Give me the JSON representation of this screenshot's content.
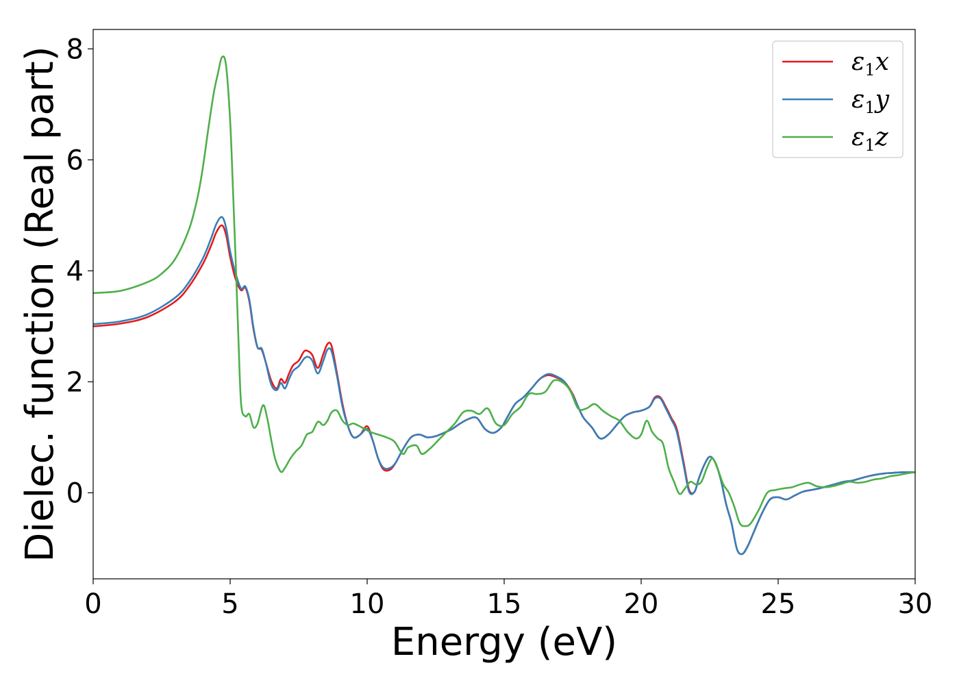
{
  "chart_data": {
    "type": "line",
    "xlabel": "Energy (eV)",
    "ylabel": "Dielec. function (Real part)",
    "xlim": [
      0,
      30
    ],
    "ylim": [
      -1.55,
      8.35
    ],
    "xticks": [
      0,
      5,
      10,
      15,
      20,
      25,
      30
    ],
    "xtick_labels": [
      "0",
      "5",
      "10",
      "15",
      "20",
      "25",
      "30"
    ],
    "yticks": [
      0,
      2,
      4,
      6,
      8
    ],
    "ytick_labels": [
      "0",
      "2",
      "4",
      "6",
      "8"
    ],
    "grid": false,
    "legend": {
      "placement": "top-right",
      "entries": [
        {
          "symbol": "ε",
          "sub": "1",
          "var": "x"
        },
        {
          "symbol": "ε",
          "sub": "1",
          "var": "y"
        },
        {
          "symbol": "ε",
          "sub": "1",
          "var": "z"
        }
      ]
    },
    "series": [
      {
        "color": "#e41a1c",
        "x": [
          0,
          1,
          2,
          3,
          3.5,
          4,
          4.3,
          4.5,
          4.7,
          4.85,
          5.0,
          5.2,
          5.4,
          5.55,
          5.7,
          5.85,
          6.0,
          6.15,
          6.3,
          6.5,
          6.7,
          6.85,
          7.0,
          7.15,
          7.3,
          7.5,
          7.7,
          7.85,
          8.0,
          8.2,
          8.4,
          8.55,
          8.7,
          8.9,
          9.1,
          9.3,
          9.5,
          9.75,
          10.0,
          10.2,
          10.4,
          10.6,
          10.85,
          11.05,
          11.3,
          11.6,
          11.9,
          12.2,
          12.5,
          12.8,
          13.1,
          13.4,
          13.7,
          14.0,
          14.3,
          14.6,
          14.9,
          15.1,
          15.4,
          15.7,
          16.0,
          16.3,
          16.6,
          16.9,
          17.2,
          17.5,
          17.7,
          17.9,
          18.2,
          18.5,
          18.8,
          19.1,
          19.4,
          19.7,
          20.0,
          20.3,
          20.5,
          20.7,
          20.9,
          21.1,
          21.3,
          21.55,
          21.75,
          21.95,
          22.1,
          22.3,
          22.5,
          22.7,
          22.9,
          23.1,
          23.3,
          23.5,
          23.7,
          23.9,
          24.1,
          24.4,
          24.7,
          25.0,
          25.3,
          25.6,
          25.9,
          26.2,
          26.5,
          26.8,
          27.1,
          27.4,
          27.7,
          28.0,
          28.3,
          28.6,
          28.9,
          29.2,
          29.5,
          29.8,
          30
        ],
        "y": [
          3.0,
          3.05,
          3.17,
          3.45,
          3.72,
          4.12,
          4.45,
          4.7,
          4.82,
          4.65,
          4.25,
          3.85,
          3.65,
          3.7,
          3.45,
          2.95,
          2.62,
          2.58,
          2.35,
          2.02,
          1.88,
          2.05,
          1.98,
          2.15,
          2.3,
          2.38,
          2.55,
          2.55,
          2.48,
          2.25,
          2.5,
          2.68,
          2.65,
          2.15,
          1.6,
          1.2,
          1.0,
          1.05,
          1.2,
          0.95,
          0.62,
          0.42,
          0.42,
          0.55,
          0.78,
          1.0,
          1.05,
          1.0,
          1.02,
          1.08,
          1.15,
          1.25,
          1.33,
          1.35,
          1.15,
          1.08,
          1.18,
          1.35,
          1.6,
          1.72,
          1.88,
          2.05,
          2.12,
          2.08,
          2.0,
          1.78,
          1.55,
          1.35,
          1.18,
          0.98,
          1.05,
          1.22,
          1.38,
          1.45,
          1.48,
          1.55,
          1.72,
          1.72,
          1.55,
          1.35,
          1.15,
          0.55,
          0.05,
          0.02,
          0.25,
          0.5,
          0.65,
          0.55,
          0.25,
          -0.2,
          -0.55,
          -1.02,
          -1.1,
          -0.95,
          -0.72,
          -0.38,
          -0.12,
          -0.08,
          -0.12,
          -0.05,
          0.02,
          0.05,
          0.08,
          0.12,
          0.16,
          0.2,
          0.22,
          0.26,
          0.3,
          0.33,
          0.35,
          0.36,
          0.37,
          0.37,
          0.37
        ]
      },
      {
        "color": "#377eb8",
        "x": [
          0,
          1,
          2,
          3,
          3.5,
          4,
          4.3,
          4.5,
          4.7,
          4.85,
          5.0,
          5.2,
          5.4,
          5.55,
          5.7,
          5.85,
          6.0,
          6.15,
          6.3,
          6.5,
          6.7,
          6.85,
          7.0,
          7.15,
          7.3,
          7.5,
          7.7,
          7.85,
          8.0,
          8.2,
          8.4,
          8.55,
          8.7,
          8.9,
          9.1,
          9.3,
          9.5,
          9.75,
          10.0,
          10.2,
          10.4,
          10.6,
          10.85,
          11.05,
          11.3,
          11.6,
          11.9,
          12.2,
          12.5,
          12.8,
          13.1,
          13.4,
          13.7,
          14.0,
          14.3,
          14.6,
          14.9,
          15.1,
          15.4,
          15.7,
          16.0,
          16.3,
          16.6,
          16.9,
          17.2,
          17.5,
          17.7,
          17.9,
          18.2,
          18.5,
          18.8,
          19.1,
          19.4,
          19.7,
          20.0,
          20.3,
          20.5,
          20.7,
          20.9,
          21.1,
          21.3,
          21.55,
          21.75,
          21.95,
          22.1,
          22.3,
          22.5,
          22.7,
          22.9,
          23.1,
          23.3,
          23.5,
          23.7,
          23.9,
          24.1,
          24.4,
          24.7,
          25.0,
          25.3,
          25.6,
          25.9,
          26.2,
          26.5,
          26.8,
          27.1,
          27.4,
          27.7,
          28.0,
          28.3,
          28.6,
          28.9,
          29.2,
          29.5,
          29.8,
          30
        ],
        "y": [
          3.04,
          3.09,
          3.22,
          3.52,
          3.8,
          4.22,
          4.58,
          4.85,
          4.97,
          4.78,
          4.35,
          3.95,
          3.68,
          3.72,
          3.48,
          2.98,
          2.62,
          2.6,
          2.35,
          1.95,
          1.85,
          1.98,
          1.88,
          2.05,
          2.2,
          2.28,
          2.42,
          2.45,
          2.38,
          2.15,
          2.38,
          2.58,
          2.55,
          2.1,
          1.55,
          1.2,
          1.0,
          1.05,
          1.15,
          0.95,
          0.62,
          0.45,
          0.45,
          0.55,
          0.78,
          1.0,
          1.05,
          1.0,
          1.02,
          1.08,
          1.15,
          1.25,
          1.33,
          1.35,
          1.15,
          1.08,
          1.18,
          1.35,
          1.6,
          1.72,
          1.88,
          2.05,
          2.14,
          2.1,
          2.0,
          1.76,
          1.55,
          1.35,
          1.18,
          0.98,
          1.05,
          1.22,
          1.38,
          1.45,
          1.48,
          1.55,
          1.7,
          1.7,
          1.52,
          1.32,
          1.1,
          0.5,
          0.02,
          0.02,
          0.25,
          0.5,
          0.65,
          0.55,
          0.25,
          -0.2,
          -0.55,
          -1.02,
          -1.1,
          -0.95,
          -0.72,
          -0.38,
          -0.12,
          -0.08,
          -0.12,
          -0.05,
          0.02,
          0.05,
          0.08,
          0.12,
          0.16,
          0.2,
          0.22,
          0.26,
          0.3,
          0.33,
          0.35,
          0.36,
          0.37,
          0.37,
          0.37
        ]
      },
      {
        "color": "#4daf4a",
        "x": [
          0,
          1,
          2,
          2.5,
          3,
          3.5,
          3.8,
          4.0,
          4.2,
          4.4,
          4.55,
          4.7,
          4.85,
          5.0,
          5.1,
          5.2,
          5.3,
          5.4,
          5.55,
          5.7,
          5.85,
          6.0,
          6.2,
          6.35,
          6.5,
          6.65,
          6.85,
          7.0,
          7.2,
          7.4,
          7.6,
          7.8,
          8.0,
          8.2,
          8.4,
          8.55,
          8.7,
          8.9,
          9.1,
          9.3,
          9.5,
          9.8,
          10.1,
          10.4,
          10.7,
          11.0,
          11.3,
          11.5,
          11.8,
          12.0,
          12.3,
          12.6,
          12.9,
          13.2,
          13.5,
          13.8,
          14.1,
          14.4,
          14.7,
          15.0,
          15.3,
          15.6,
          15.9,
          16.2,
          16.5,
          16.8,
          17.1,
          17.4,
          17.7,
          18.0,
          18.3,
          18.6,
          18.9,
          19.2,
          19.5,
          19.8,
          20.0,
          20.2,
          20.4,
          20.6,
          20.8,
          21.0,
          21.2,
          21.4,
          21.6,
          21.8,
          22.0,
          22.2,
          22.4,
          22.6,
          22.8,
          23.0,
          23.2,
          23.4,
          23.6,
          23.8,
          24.0,
          24.3,
          24.6,
          24.9,
          25.2,
          25.5,
          25.8,
          26.1,
          26.4,
          26.7,
          27.0,
          27.3,
          27.6,
          27.9,
          28.2,
          28.5,
          28.8,
          29.1,
          29.4,
          29.7,
          30
        ],
        "y": [
          3.6,
          3.64,
          3.8,
          3.95,
          4.22,
          4.75,
          5.3,
          5.85,
          6.55,
          7.2,
          7.55,
          7.85,
          7.7,
          6.7,
          5.5,
          4.2,
          2.8,
          1.6,
          1.38,
          1.42,
          1.18,
          1.25,
          1.58,
          1.35,
          0.95,
          0.6,
          0.38,
          0.45,
          0.62,
          0.75,
          0.85,
          1.05,
          1.1,
          1.28,
          1.22,
          1.3,
          1.45,
          1.48,
          1.3,
          1.22,
          1.25,
          1.18,
          1.1,
          1.05,
          1.0,
          0.92,
          0.7,
          0.82,
          0.85,
          0.7,
          0.8,
          0.95,
          1.1,
          1.25,
          1.45,
          1.48,
          1.42,
          1.52,
          1.25,
          1.22,
          1.42,
          1.55,
          1.78,
          1.78,
          1.82,
          2.02,
          2.0,
          1.85,
          1.52,
          1.52,
          1.6,
          1.48,
          1.38,
          1.3,
          1.1,
          0.98,
          1.05,
          1.3,
          1.1,
          0.98,
          0.88,
          0.45,
          0.2,
          -0.02,
          0.08,
          0.2,
          0.15,
          0.2,
          0.45,
          0.62,
          0.42,
          0.15,
          0.0,
          -0.25,
          -0.55,
          -0.6,
          -0.55,
          -0.3,
          0.0,
          0.05,
          0.08,
          0.1,
          0.15,
          0.18,
          0.12,
          0.1,
          0.12,
          0.16,
          0.2,
          0.18,
          0.2,
          0.24,
          0.26,
          0.3,
          0.32,
          0.35,
          0.37
        ]
      }
    ]
  }
}
